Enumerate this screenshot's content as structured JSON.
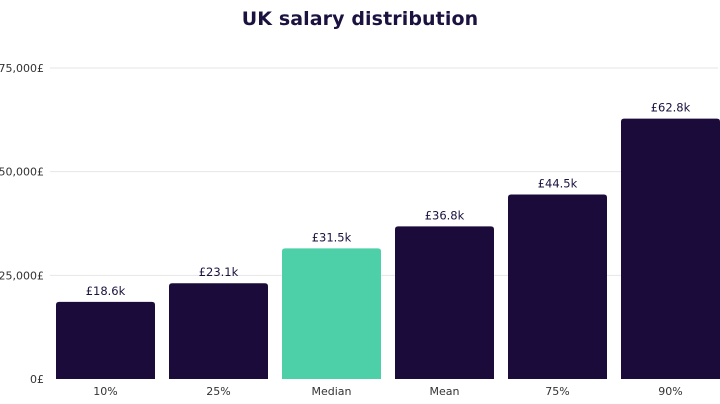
{
  "chart_data": {
    "type": "bar",
    "title": "UK salary distribution",
    "xlabel": "",
    "ylabel": "",
    "categories": [
      "10%",
      "25%",
      "Median",
      "Mean",
      "75%",
      "90%"
    ],
    "values": [
      18600,
      23100,
      31500,
      36800,
      44500,
      62800
    ],
    "data_labels": [
      "£18.6k",
      "£23.1k",
      "£31.5k",
      "£36.8k",
      "£44.5k",
      "£62.8k"
    ],
    "ylim": [
      0,
      75000
    ],
    "yticks": [
      0,
      25000,
      50000,
      75000
    ],
    "ytick_labels": [
      "0£",
      "25,000£",
      "50,000£",
      "75,000£"
    ],
    "grid": true,
    "legend": "none",
    "colors": {
      "default_bar": "#1b0b3b",
      "highlight_bar": "#4dcfa8",
      "title": "#1b1240"
    },
    "highlight_category": "Median"
  }
}
